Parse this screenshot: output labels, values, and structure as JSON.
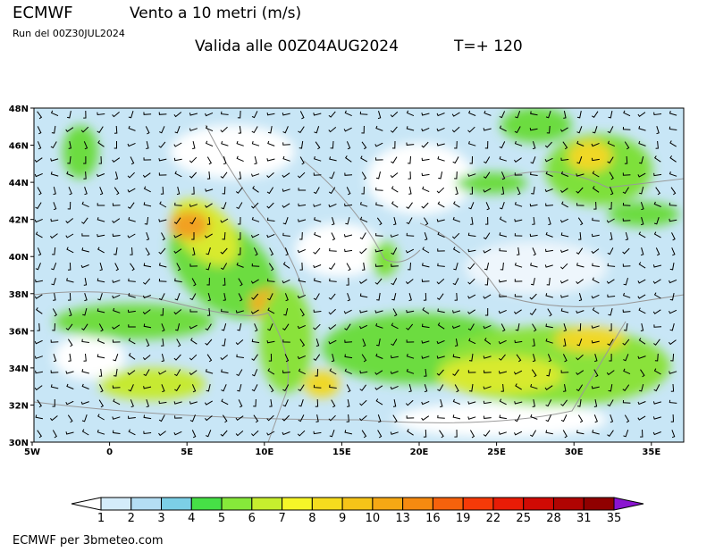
{
  "header": {
    "model": "ECMWF",
    "title": "Vento a 10 metri (m/s)",
    "run": "Run del 00Z30JUL2024",
    "valid": "Valida alle 00Z04AUG2024",
    "step": "T=+ 120"
  },
  "map": {
    "lat_labels": [
      "48N",
      "46N",
      "44N",
      "42N",
      "40N",
      "38N",
      "36N",
      "34N",
      "32N",
      "30N"
    ],
    "lon_labels": [
      "5W",
      "0",
      "5E",
      "10E",
      "15E",
      "20E",
      "25E",
      "30E",
      "35E"
    ]
  },
  "legend": {
    "labels": [
      1,
      2,
      3,
      4,
      5,
      6,
      7,
      8,
      9,
      10,
      13,
      16,
      19,
      22,
      25,
      28,
      31,
      35
    ],
    "colors": [
      "#d4ecfa",
      "#b4def4",
      "#7ccfe6",
      "#46e046",
      "#86e83a",
      "#c6ee2e",
      "#f6f628",
      "#f6dc1e",
      "#f6c418",
      "#f6a814",
      "#f68a10",
      "#f6620c",
      "#f63a08",
      "#e81c06",
      "#d00a04",
      "#b00402",
      "#900000"
    ],
    "under_color": "#ffffff",
    "over_color": "#8a14d0"
  },
  "footer": "ECMWF per 3bmeteo.com"
}
